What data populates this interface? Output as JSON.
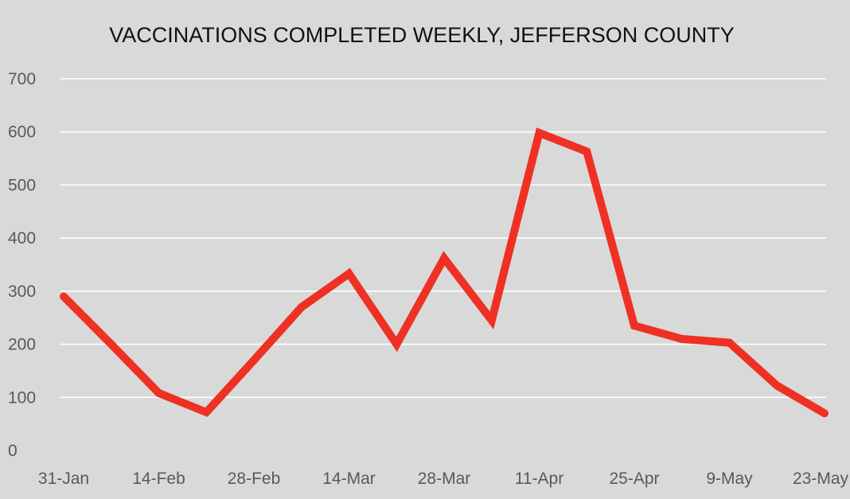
{
  "chart_data": {
    "type": "line",
    "title": "VACCINATIONS COMPLETED WEEKLY, JEFFERSON COUNTY",
    "xlabel": "",
    "ylabel": "",
    "x": [
      "31-Jan",
      "7-Feb",
      "14-Feb",
      "21-Feb",
      "28-Feb",
      "7-Mar",
      "14-Mar",
      "21-Mar",
      "28-Mar",
      "4-Apr",
      "11-Apr",
      "18-Apr",
      "25-Apr",
      "2-May",
      "9-May",
      "16-May",
      "23-May"
    ],
    "x_tick_labels": [
      "31-Jan",
      "14-Feb",
      "28-Feb",
      "14-Mar",
      "28-Mar",
      "11-Apr",
      "25-Apr",
      "9-May",
      "23-May"
    ],
    "series": [
      {
        "values": [
          290,
          200,
          108,
          72,
          170,
          270,
          333,
          200,
          362,
          245,
          598,
          563,
          235,
          210,
          203,
          122,
          70
        ],
        "color": "#ee3124"
      }
    ],
    "ylim": [
      0,
      700
    ],
    "yticks": [
      0,
      100,
      200,
      300,
      400,
      500,
      600,
      700
    ],
    "grid": true,
    "legend": "none",
    "background_color": "#d9d9d9",
    "grid_color": "#ffffff"
  }
}
